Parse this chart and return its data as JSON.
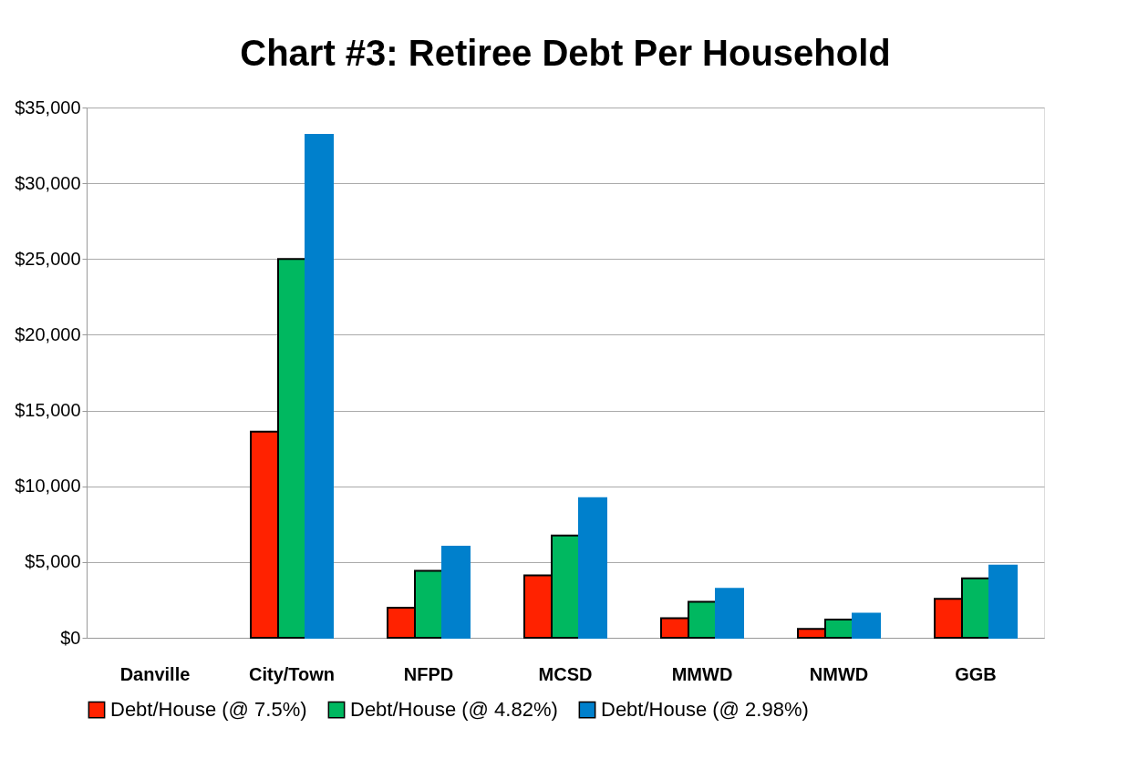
{
  "chart_data": {
    "type": "bar",
    "title": "Chart #3:  Retiree Debt Per Household",
    "categories": [
      "Danville",
      "City/Town",
      "NFPD",
      "MCSD",
      "MMWD",
      "NMWD",
      "GGB"
    ],
    "series": [
      {
        "name": "Debt/House (@ 7.5%)",
        "color": "#ff2200",
        "values": [
          null,
          13600,
          1980,
          4120,
          1300,
          580,
          2570
        ]
      },
      {
        "name": "Debt/House (@ 4.82%)",
        "color": "#00b860",
        "values": [
          null,
          25000,
          4420,
          6750,
          2370,
          1200,
          3920
        ]
      },
      {
        "name": "Debt/House (@ 2.98%)",
        "color": "#0080cc",
        "values": [
          null,
          33200,
          6010,
          9220,
          3230,
          1600,
          4760
        ]
      }
    ],
    "ylim": [
      0,
      35000
    ],
    "yticks": [
      {
        "value": 0,
        "label": "$0"
      },
      {
        "value": 5000,
        "label": "$5,000"
      },
      {
        "value": 10000,
        "label": "$10,000"
      },
      {
        "value": 15000,
        "label": "$15,000"
      },
      {
        "value": 20000,
        "label": "$20,000"
      },
      {
        "value": 25000,
        "label": "$25,000"
      },
      {
        "value": 30000,
        "label": "$30,000"
      },
      {
        "value": 35000,
        "label": "$35,000"
      }
    ],
    "grid": "y",
    "legend": "bottom"
  }
}
